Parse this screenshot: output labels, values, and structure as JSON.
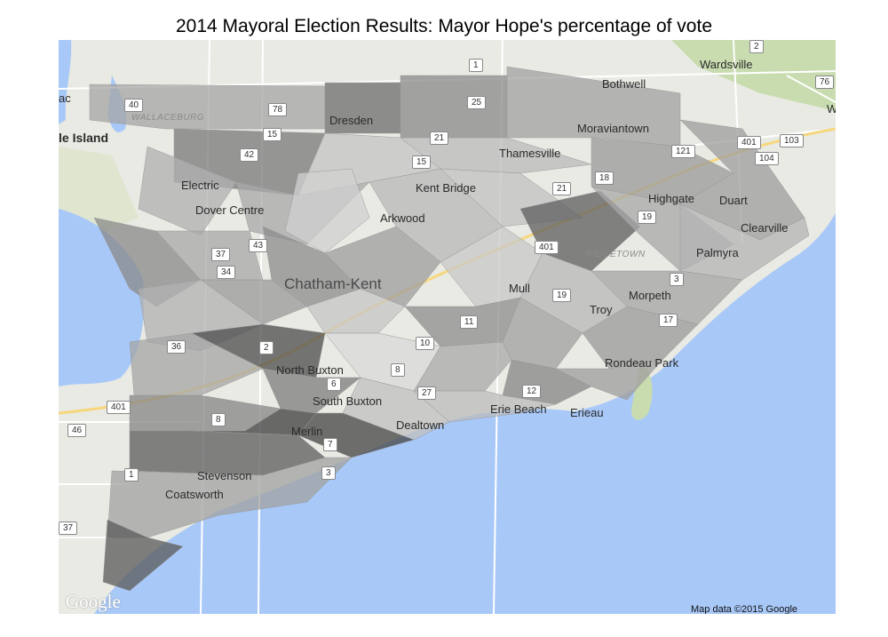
{
  "title": "2014 Mayoral Election Results: Mayor Hope's percentage of vote",
  "attribution": "Map data ©2015 Google",
  "logo": "Google",
  "colors": {
    "water": "#a8c8f8",
    "land": "#e8eae3",
    "park": "#c9dcb0",
    "road": "#ffffff",
    "highway": "#f7d77e"
  },
  "place_labels": [
    {
      "id": "wardsville",
      "text": "Wardsville"
    },
    {
      "id": "bothwell",
      "text": "Bothwell"
    },
    {
      "id": "moraviantown",
      "text": "Moraviantown"
    },
    {
      "id": "dresden",
      "text": "Dresden"
    },
    {
      "id": "wallaceburg",
      "text": "WALLACEBURG"
    },
    {
      "id": "walpole",
      "text": "le Island"
    },
    {
      "id": "ac",
      "text": "ac"
    },
    {
      "id": "w",
      "text": "W"
    },
    {
      "id": "thamesville",
      "text": "Thamesville"
    },
    {
      "id": "electric",
      "text": "Electric"
    },
    {
      "id": "kentbridge",
      "text": "Kent Bridge"
    },
    {
      "id": "highgate",
      "text": "Highgate"
    },
    {
      "id": "duart",
      "text": "Duart"
    },
    {
      "id": "dovercentre",
      "text": "Dover Centre"
    },
    {
      "id": "arkwood",
      "text": "Arkwood"
    },
    {
      "id": "clearville",
      "text": "Clearville"
    },
    {
      "id": "ridgetown",
      "text": "RIDGETOWN"
    },
    {
      "id": "palmyra",
      "text": "Palmyra"
    },
    {
      "id": "chathamkent",
      "text": "Chatham-Kent"
    },
    {
      "id": "mull",
      "text": "Mull"
    },
    {
      "id": "morpeth",
      "text": "Morpeth"
    },
    {
      "id": "troy",
      "text": "Troy"
    },
    {
      "id": "northbuxton",
      "text": "North Buxton"
    },
    {
      "id": "rondeau",
      "text": "Rondeau Park"
    },
    {
      "id": "southbuxton",
      "text": "South Buxton"
    },
    {
      "id": "eriebeach",
      "text": "Erie Beach"
    },
    {
      "id": "erieau",
      "text": "Erieau"
    },
    {
      "id": "merlin",
      "text": "Merlin"
    },
    {
      "id": "dealtown",
      "text": "Dealtown"
    },
    {
      "id": "stevenson",
      "text": "Stevenson"
    },
    {
      "id": "coatsworth",
      "text": "Coatsworth"
    }
  ],
  "road_shields": [
    "2",
    "1",
    "76",
    "40",
    "78",
    "25",
    "15",
    "21",
    "401",
    "103",
    "121",
    "104",
    "42",
    "15",
    "21",
    "18",
    "19",
    "43",
    "37",
    "401",
    "34",
    "3",
    "19",
    "17",
    "11",
    "36",
    "2",
    "10",
    "8",
    "6",
    "27",
    "12",
    "401",
    "46",
    "8",
    "7",
    "3",
    "1",
    "37"
  ]
}
